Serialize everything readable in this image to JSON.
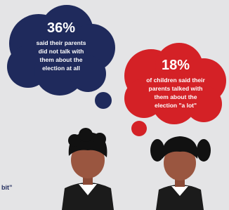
{
  "bubbles": [
    {
      "stat": "36%",
      "lines": [
        "said their parents",
        "did not talk with",
        "them about the",
        "election at all"
      ]
    },
    {
      "stat": "18%",
      "lines": [
        "of children said their",
        "parents talked with",
        "them about the",
        "election \"a lot\""
      ]
    }
  ],
  "footer_fragment": "bit”"
}
